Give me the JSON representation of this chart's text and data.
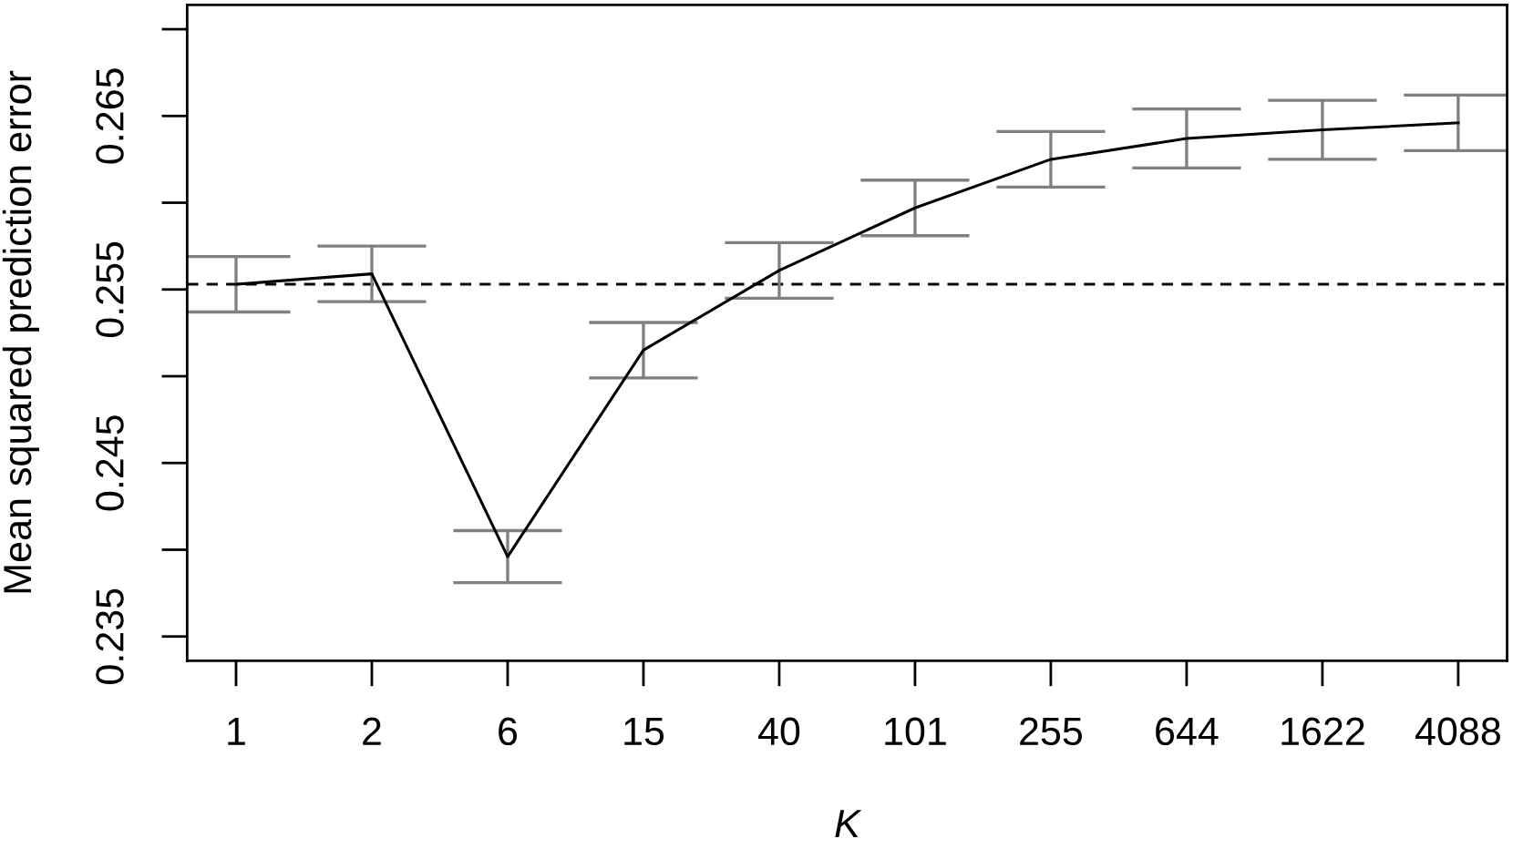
{
  "chart_data": {
    "type": "line",
    "xlabel": "K",
    "ylabel": "Mean squared prediction error",
    "categories": [
      "1",
      "2",
      "6",
      "15",
      "40",
      "101",
      "255",
      "644",
      "1622",
      "4088"
    ],
    "series": [
      {
        "color": "#000000",
        "line_style": "solid",
        "values": [
          0.2553,
          0.2559,
          0.2396,
          0.2515,
          0.2561,
          0.2597,
          0.2625,
          0.2637,
          0.2642,
          0.2646
        ],
        "errors": [
          0.0016,
          0.0016,
          0.0015,
          0.0016,
          0.0016,
          0.0016,
          0.0016,
          0.0017,
          0.0017,
          0.0016
        ]
      }
    ],
    "ylim": [
      0.2336,
      0.2714
    ],
    "yticks": [
      0.235,
      {
        "value": 0.24,
        "label": null
      },
      0.245,
      {
        "value": 0.25,
        "label": null
      },
      0.255,
      {
        "value": 0.26,
        "label": null
      },
      0.265,
      {
        "value": 0.27,
        "label": null
      }
    ],
    "ref_lines": [
      {
        "axis": "y",
        "value": 0.2553,
        "color": "#000000",
        "line_style": "dashed"
      }
    ],
    "grid": false
  }
}
